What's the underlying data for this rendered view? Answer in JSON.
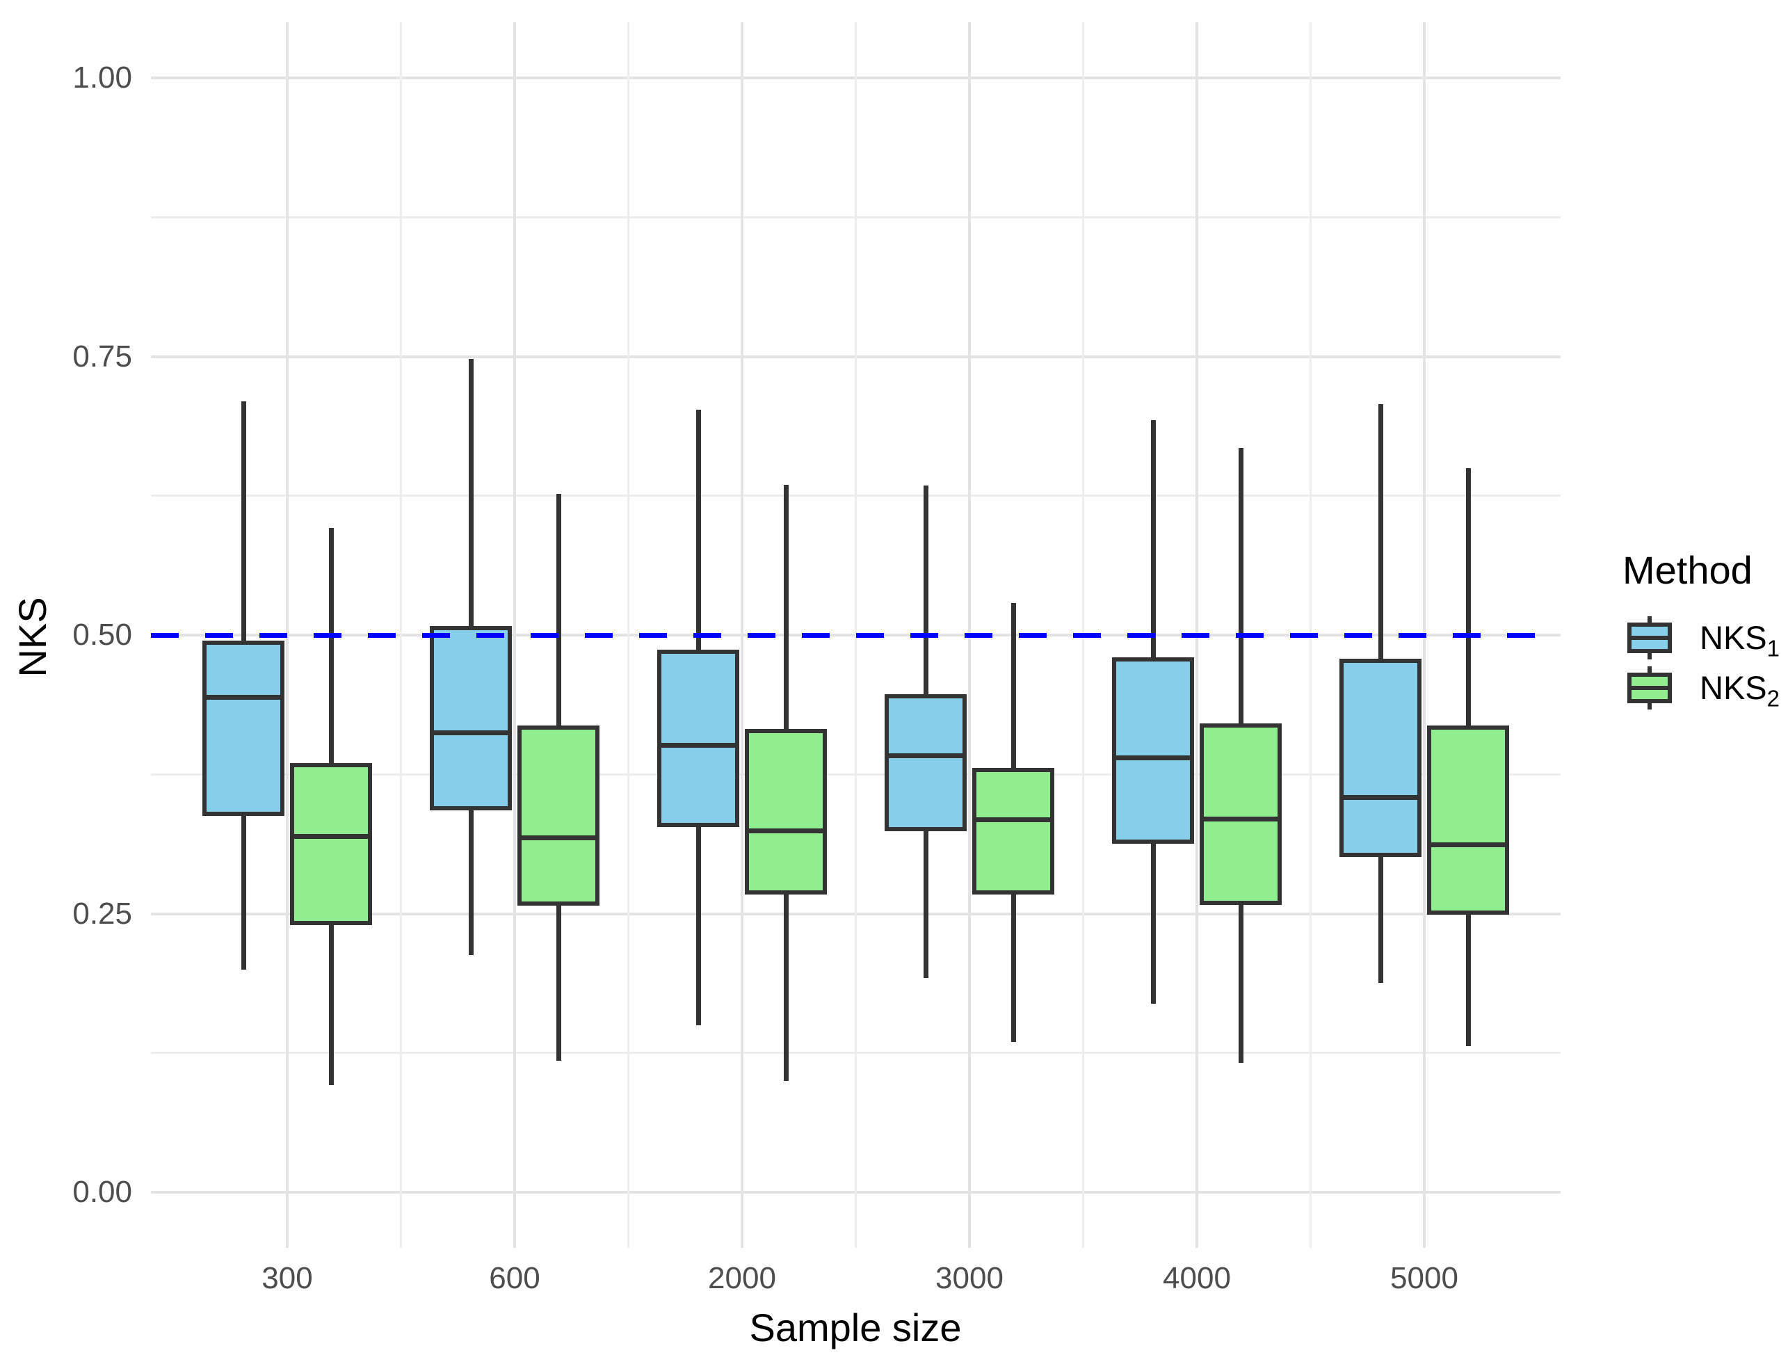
{
  "chart_data": {
    "type": "boxplot",
    "title": "",
    "xlabel": "Sample size",
    "ylabel": "NKS",
    "categories": [
      "300",
      "600",
      "2000",
      "3000",
      "4000",
      "5000"
    ],
    "y_axis": {
      "min": 0,
      "max": 1,
      "major_ticks": [
        0,
        0.25,
        0.5,
        0.75,
        1
      ],
      "major_tick_labels": [
        "0.00",
        "0.25",
        "0.50",
        "0.75",
        "1.00"
      ],
      "minor_ticks": [
        0.125,
        0.375,
        0.625,
        0.875
      ],
      "expand_fraction": 0.05,
      "grid": true
    },
    "reference_line": {
      "value": 0.5,
      "style": "dashed",
      "color": "#0000FF"
    },
    "legend": {
      "title": "Method",
      "position": "right"
    },
    "series": [
      {
        "name_base": "NKS",
        "name_sub": "1",
        "fill": "#87CEEB",
        "stats": [
          {
            "category": "300",
            "min": 0.2,
            "q1": 0.338,
            "median": 0.444,
            "q3": 0.495,
            "max": 0.71
          },
          {
            "category": "600",
            "min": 0.213,
            "q1": 0.343,
            "median": 0.412,
            "q3": 0.508,
            "max": 0.748
          },
          {
            "category": "2000",
            "min": 0.15,
            "q1": 0.328,
            "median": 0.401,
            "q3": 0.487,
            "max": 0.702
          },
          {
            "category": "3000",
            "min": 0.192,
            "q1": 0.324,
            "median": 0.392,
            "q3": 0.447,
            "max": 0.634
          },
          {
            "category": "4000",
            "min": 0.169,
            "q1": 0.313,
            "median": 0.39,
            "q3": 0.48,
            "max": 0.693
          },
          {
            "category": "5000",
            "min": 0.188,
            "q1": 0.301,
            "median": 0.354,
            "q3": 0.479,
            "max": 0.707
          }
        ]
      },
      {
        "name_base": "NKS",
        "name_sub": "2",
        "fill": "#90EE90",
        "stats": [
          {
            "category": "300",
            "min": 0.096,
            "q1": 0.24,
            "median": 0.319,
            "q3": 0.385,
            "max": 0.596
          },
          {
            "category": "600",
            "min": 0.118,
            "q1": 0.257,
            "median": 0.318,
            "q3": 0.419,
            "max": 0.627
          },
          {
            "category": "2000",
            "min": 0.1,
            "q1": 0.267,
            "median": 0.324,
            "q3": 0.416,
            "max": 0.635
          },
          {
            "category": "3000",
            "min": 0.135,
            "q1": 0.267,
            "median": 0.334,
            "q3": 0.381,
            "max": 0.529
          },
          {
            "category": "4000",
            "min": 0.116,
            "q1": 0.258,
            "median": 0.335,
            "q3": 0.421,
            "max": 0.668
          },
          {
            "category": "5000",
            "min": 0.131,
            "q1": 0.249,
            "median": 0.312,
            "q3": 0.419,
            "max": 0.65
          }
        ]
      }
    ],
    "style": {
      "box_stroke": "#333333",
      "grid_major_color": "#E3E3E3",
      "grid_minor_color": "#EDEDED",
      "tick_label_color": "#4D4D4D",
      "title_color": "#000000",
      "background": "#FFFFFF"
    }
  }
}
